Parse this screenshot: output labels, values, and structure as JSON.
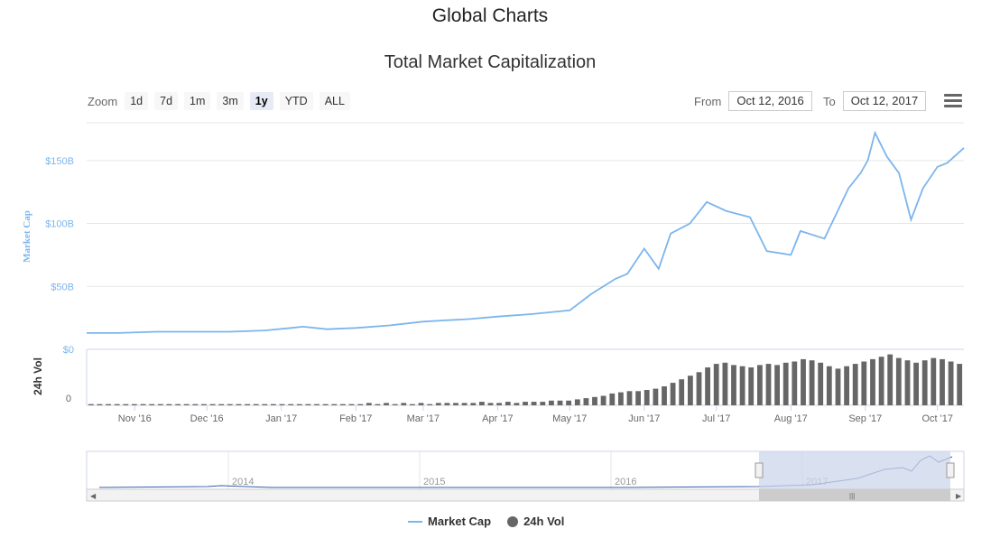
{
  "page_title": "Global Charts",
  "chart_title": "Total Market Capitalization",
  "zoom": {
    "label": "Zoom",
    "buttons": [
      "1d",
      "7d",
      "1m",
      "3m",
      "1y",
      "YTD",
      "ALL"
    ],
    "active": "1y"
  },
  "range": {
    "from_label": "From",
    "from_value": "Oct 12, 2016",
    "to_label": "To",
    "to_value": "Oct 12, 2017"
  },
  "menu_icon": "hamburger-menu-icon",
  "colors": {
    "market_cap": "#7cb5ec",
    "volume": "#666666",
    "navigator_fill": "#ccd6eb"
  },
  "legend": {
    "market_cap": "Market Cap",
    "volume": "24h Vol"
  },
  "chart_data": {
    "type": "line",
    "x_ticks": [
      "Nov '16",
      "Dec '16",
      "Jan '17",
      "Feb '17",
      "Mar '17",
      "Apr '17",
      "May '17",
      "Jun '17",
      "Jul '17",
      "Aug '17",
      "Sep '17",
      "Oct '17"
    ],
    "series": [
      {
        "name": "Market Cap",
        "axis": "primary",
        "dates": [
          "2016-10-12",
          "2016-10-25",
          "2016-11-10",
          "2016-11-25",
          "2016-12-10",
          "2016-12-25",
          "2017-01-05",
          "2017-01-10",
          "2017-01-20",
          "2017-02-01",
          "2017-02-15",
          "2017-03-01",
          "2017-03-10",
          "2017-03-20",
          "2017-04-01",
          "2017-04-15",
          "2017-05-01",
          "2017-05-10",
          "2017-05-20",
          "2017-05-25",
          "2017-06-01",
          "2017-06-07",
          "2017-06-12",
          "2017-06-20",
          "2017-06-27",
          "2017-07-05",
          "2017-07-15",
          "2017-07-22",
          "2017-08-01",
          "2017-08-05",
          "2017-08-15",
          "2017-08-20",
          "2017-08-25",
          "2017-08-30",
          "2017-09-02",
          "2017-09-05",
          "2017-09-10",
          "2017-09-15",
          "2017-09-20",
          "2017-09-25",
          "2017-10-01",
          "2017-10-05",
          "2017-10-12"
        ],
        "values": [
          13,
          13,
          14,
          14,
          14,
          15,
          17,
          18,
          16,
          17,
          19,
          22,
          23,
          24,
          26,
          28,
          31,
          44,
          56,
          60,
          80,
          64,
          92,
          100,
          117,
          110,
          105,
          78,
          75,
          94,
          88,
          108,
          128,
          140,
          150,
          172,
          153,
          140,
          103,
          128,
          145,
          148,
          160
        ]
      },
      {
        "name": "24h Vol",
        "axis": "secondary",
        "type": "column",
        "values": [
          0.1,
          0.1,
          0.1,
          0.1,
          0.1,
          0.1,
          0.1,
          0.1,
          0.1,
          0.1,
          0.1,
          0.1,
          0.1,
          0.1,
          0.1,
          0.1,
          0.1,
          0.1,
          0.1,
          0.1,
          0.1,
          0.1,
          0.1,
          0.1,
          0.1,
          0.1,
          0.1,
          0.1,
          0.1,
          0.1,
          0.1,
          0.1,
          0.2,
          0.1,
          0.2,
          0.1,
          0.2,
          0.1,
          0.2,
          0.1,
          0.2,
          0.2,
          0.2,
          0.2,
          0.2,
          0.3,
          0.2,
          0.2,
          0.3,
          0.2,
          0.3,
          0.3,
          0.3,
          0.4,
          0.4,
          0.4,
          0.5,
          0.6,
          0.7,
          0.8,
          1.0,
          1.1,
          1.2,
          1.2,
          1.3,
          1.4,
          1.6,
          1.9,
          2.2,
          2.5,
          2.8,
          3.2,
          3.5,
          3.6,
          3.4,
          3.3,
          3.2,
          3.4,
          3.5,
          3.4,
          3.6,
          3.7,
          3.9,
          3.8,
          3.6,
          3.3,
          3.1,
          3.3,
          3.5,
          3.7,
          3.9,
          4.1,
          4.3,
          4.0,
          3.8,
          3.6,
          3.8,
          4.0,
          3.9,
          3.7,
          3.5
        ]
      }
    ],
    "y_axis": {
      "title": "Market Cap",
      "ticks": [
        "$0",
        "$50B",
        "$100B",
        "$150B"
      ],
      "min": 0,
      "max": 180
    },
    "y2_axis": {
      "title": "24h Vol",
      "ticks": [
        "0"
      ]
    },
    "navigator": {
      "years": [
        "2014",
        "2015",
        "2016",
        "2017"
      ],
      "selection": [
        "Oct 12, 2016",
        "Oct 12, 2017"
      ]
    },
    "legend_position": "bottom-center",
    "grid": true
  }
}
